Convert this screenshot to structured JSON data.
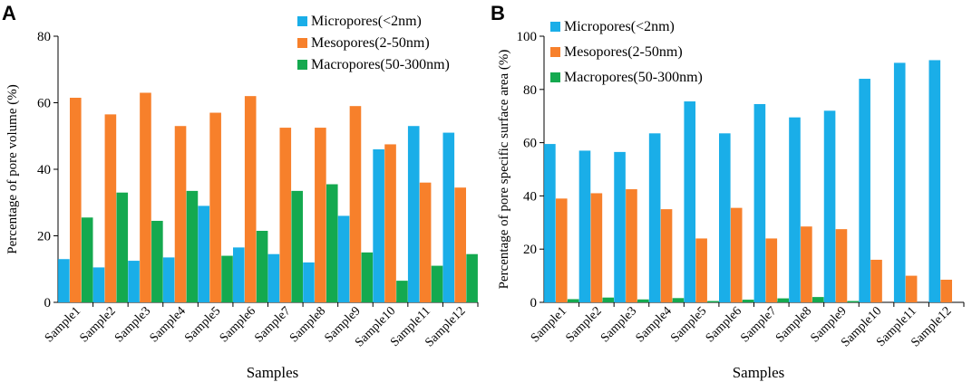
{
  "chart_data": [
    {
      "panel": "A",
      "type": "bar",
      "xlabel": "Samples",
      "ylabel": "Percentage of pore volume (%)",
      "ylim": [
        0,
        80
      ],
      "yticks": [
        0,
        20,
        40,
        60,
        80
      ],
      "legend_position": "top-right",
      "categories": [
        "Sample1",
        "Sample2",
        "Sample3",
        "Sample4",
        "Sample5",
        "Sample6",
        "Sample7",
        "Sample8",
        "Sample9",
        "Sample10",
        "Sample11",
        "Sample12"
      ],
      "series": [
        {
          "name": "Micropores(<2nm)",
          "color": "#1aaee8",
          "values": [
            13,
            10.5,
            12.5,
            13.5,
            29,
            16.5,
            14.5,
            12,
            26,
            46,
            53,
            51
          ]
        },
        {
          "name": "Mesopores(2-50nm)",
          "color": "#f7802b",
          "values": [
            61.5,
            56.5,
            63,
            53,
            57,
            62,
            52.5,
            52.5,
            59,
            47.5,
            36,
            34.5
          ]
        },
        {
          "name": "Macropores(50-300nm)",
          "color": "#14a94f",
          "values": [
            25.5,
            33,
            24.5,
            33.5,
            14,
            21.5,
            33.5,
            35.5,
            15,
            6.5,
            11,
            14.5
          ]
        }
      ]
    },
    {
      "panel": "B",
      "type": "bar",
      "xlabel": "Samples",
      "ylabel": "Percentage of pore specific surface area (%)",
      "ylim": [
        0,
        100
      ],
      "yticks": [
        0,
        20,
        40,
        60,
        80,
        100
      ],
      "legend_position": "top-left",
      "categories": [
        "Sample1",
        "Sample2",
        "Sample3",
        "Sample4",
        "Sample5",
        "Sample6",
        "Sample7",
        "Sample8",
        "Sample9",
        "Sample10",
        "Sample11",
        "Sample12"
      ],
      "series": [
        {
          "name": "Micropores(<2nm)",
          "color": "#1aaee8",
          "values": [
            59.5,
            57,
            56.5,
            63.5,
            75.5,
            63.5,
            74.5,
            69.5,
            72,
            84,
            90,
            91
          ]
        },
        {
          "name": "Mesopores(2-50nm)",
          "color": "#f7802b",
          "values": [
            39,
            41,
            42.5,
            35,
            24,
            35.5,
            24,
            28.5,
            27.5,
            16,
            10,
            8.5
          ]
        },
        {
          "name": "Macropores(50-300nm)",
          "color": "#14a94f",
          "values": [
            1.2,
            1.8,
            1.1,
            1.6,
            0.5,
            1,
            1.5,
            2,
            0.5,
            0,
            0,
            0
          ]
        }
      ]
    }
  ]
}
